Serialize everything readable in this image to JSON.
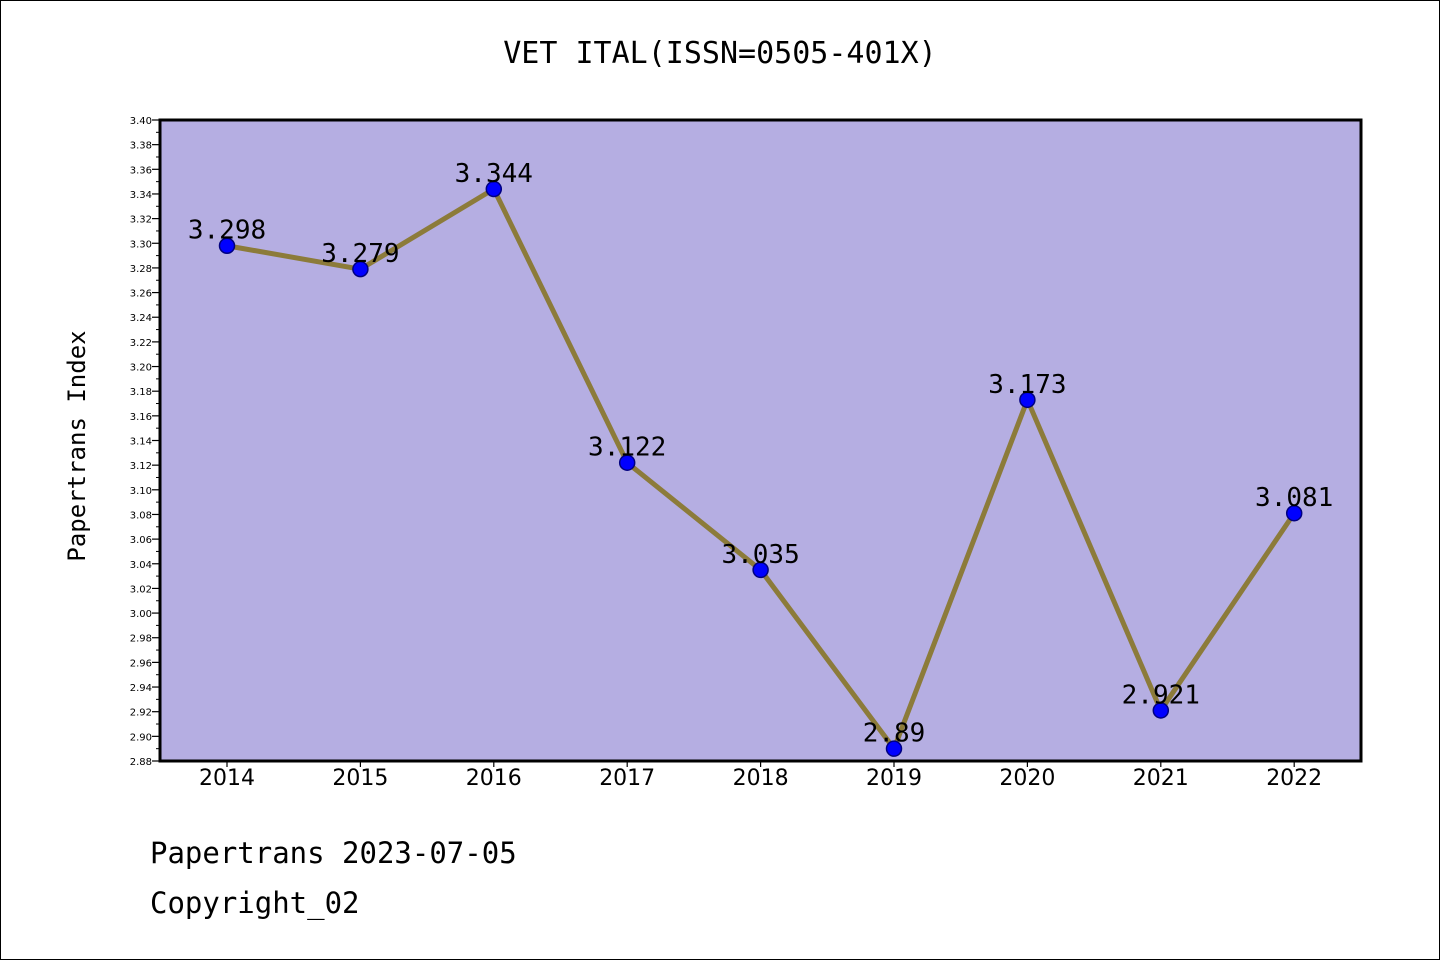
{
  "title": "VET ITAL(ISSN=0505-401X)",
  "footer": {
    "line1": "Papertrans 2023-07-05",
    "line2": "Copyright_02"
  },
  "colors": {
    "plot_background": "#b5aee2",
    "line": "#8c7b3a",
    "marker": "#0000ff",
    "marker_edge": "#000080",
    "axis": "#000000",
    "page_background": "#ffffff"
  },
  "chart_data": {
    "type": "line",
    "title": "VET ITAL(ISSN=0505-401X)",
    "xlabel": "",
    "ylabel": "Papertrans Index",
    "categories": [
      "2014",
      "2015",
      "2016",
      "2017",
      "2018",
      "2019",
      "2020",
      "2021",
      "2022"
    ],
    "values": [
      3.298,
      3.279,
      3.344,
      3.122,
      3.035,
      2.89,
      3.173,
      2.921,
      3.081
    ],
    "data_labels": [
      "3.298",
      "3.279",
      "3.344",
      "3.122",
      "3.035",
      "2.89",
      "3.173",
      "2.921",
      "3.081"
    ],
    "ylim": [
      2.88,
      3.4
    ],
    "yticks": [
      "2.88",
      "2.90",
      "2.92",
      "2.94",
      "2.96",
      "2.98",
      "3.00",
      "3.02",
      "3.04",
      "3.06",
      "3.08",
      "3.10",
      "3.12",
      "3.14",
      "3.16",
      "3.18",
      "3.20",
      "3.22",
      "3.24",
      "3.26",
      "3.28",
      "3.30",
      "3.32",
      "3.34",
      "3.36",
      "3.38",
      "3.40"
    ],
    "grid": false,
    "legend": "none"
  }
}
